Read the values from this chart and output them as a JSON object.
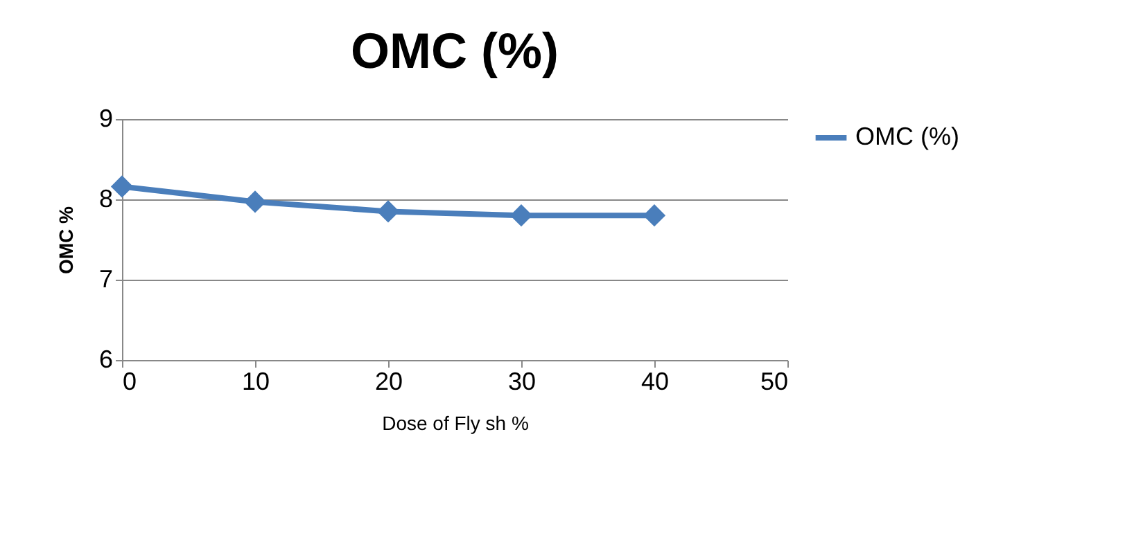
{
  "chart_data": {
    "type": "line",
    "title": "OMC (%)",
    "xlabel": "Dose of Fly sh %",
    "ylabel": "OMC %",
    "x": [
      0,
      10,
      20,
      30,
      40
    ],
    "series": [
      {
        "name": "OMC (%)",
        "color": "#4a7ebb",
        "values": [
          8.16,
          7.97,
          7.85,
          7.8,
          7.8
        ]
      }
    ],
    "xlim": [
      0,
      50
    ],
    "xticks": [
      0,
      10,
      20,
      30,
      40,
      50
    ],
    "ylim": [
      6,
      9
    ],
    "yticks": [
      6,
      7,
      8,
      9
    ],
    "grid": "y",
    "legend": "right",
    "marker": "diamond",
    "line_style": "solid"
  }
}
